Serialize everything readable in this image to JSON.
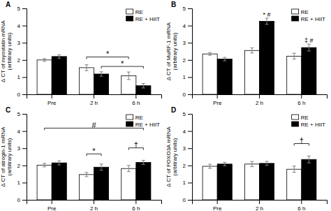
{
  "chart_data": [
    {
      "type": "bar",
      "title": "A",
      "y_label": "Δ CT of myostatin mRNA\n(arbitrary units)",
      "categories": [
        "Pre",
        "2 h",
        "6 h"
      ],
      "series": [
        {
          "name": "RE",
          "color": "white",
          "values": [
            2.0,
            1.55,
            1.08
          ],
          "errors": [
            0.08,
            0.17,
            0.22
          ]
        },
        {
          "name": "RE + HIIT",
          "color": "black",
          "values": [
            2.2,
            1.18,
            0.5
          ],
          "errors": [
            0.1,
            0.13,
            0.13
          ]
        }
      ],
      "ylim": [
        0,
        5
      ],
      "yticks": [
        0,
        1,
        2,
        3,
        4,
        5
      ],
      "legend": "upper right",
      "annotations": [
        {
          "text": "*",
          "y": 2.05,
          "from": {
            "category": "2 h",
            "series": "RE"
          },
          "to": {
            "category": "6 h",
            "series": "RE"
          }
        },
        {
          "text": "*",
          "y": 1.5,
          "from": {
            "category": "2 h",
            "series": "RE + HIIT"
          },
          "to": {
            "category": "6 h",
            "series": "RE + HIIT"
          }
        }
      ]
    },
    {
      "type": "bar",
      "title": "B",
      "y_label": "Δ CT of MuRF-1 mRNA\n(arbitrary units)",
      "categories": [
        "Pre",
        "2 h",
        "6 h"
      ],
      "series": [
        {
          "name": "RE",
          "color": "white",
          "values": [
            2.35,
            2.55,
            2.22
          ],
          "errors": [
            0.08,
            0.15,
            0.17
          ]
        },
        {
          "name": "RE + HIIT",
          "color": "black",
          "values": [
            2.05,
            4.25,
            2.72
          ],
          "errors": [
            0.1,
            0.18,
            0.2
          ]
        }
      ],
      "ylim": [
        0,
        5
      ],
      "yticks": [
        0,
        1,
        2,
        3,
        4,
        5
      ],
      "legend": "upper right",
      "annotations": [
        {
          "text": "* #",
          "category": "2 h",
          "series": "RE + HIIT"
        },
        {
          "text": "‡ #",
          "category": "6 h",
          "series": "RE + HIIT"
        }
      ]
    },
    {
      "type": "bar",
      "title": "C",
      "y_label": "Δ CT of atrogin-1 mRNA\n(arbitrary units)",
      "categories": [
        "Pre",
        "2 h",
        "6 h"
      ],
      "series": [
        {
          "name": "RE",
          "color": "white",
          "values": [
            2.02,
            1.47,
            1.82
          ],
          "errors": [
            0.1,
            0.12,
            0.18
          ]
        },
        {
          "name": "RE + HIIT",
          "color": "black",
          "values": [
            2.15,
            1.9,
            2.18
          ],
          "errors": [
            0.12,
            0.18,
            0.12
          ]
        }
      ],
      "ylim": [
        0,
        5
      ],
      "yticks": [
        0,
        1,
        2,
        3,
        4,
        5
      ],
      "legend": "upper right",
      "annotations": [
        {
          "text": "#",
          "y": 4.05,
          "from": {
            "category": "Pre",
            "series": "RE"
          },
          "to": {
            "category": "6 h",
            "series": "RE + HIIT"
          }
        },
        {
          "text": "*",
          "y": 2.55,
          "from": {
            "category": "2 h",
            "series": "RE"
          },
          "to": {
            "category": "2 h",
            "series": "RE + HIIT"
          }
        },
        {
          "text": "†",
          "y": 2.9,
          "from": {
            "category": "6 h",
            "series": "RE"
          },
          "to": {
            "category": "6 h",
            "series": "RE + HIIT"
          }
        }
      ]
    },
    {
      "type": "bar",
      "title": "D",
      "y_label": "Δ CT of FOXO3A mRNA\n(arbitrary units)",
      "categories": [
        "Pre",
        "2 h",
        "6 h"
      ],
      "series": [
        {
          "name": "RE",
          "color": "white",
          "values": [
            1.95,
            2.08,
            1.78
          ],
          "errors": [
            0.12,
            0.15,
            0.18
          ]
        },
        {
          "name": "RE + HIIT",
          "color": "black",
          "values": [
            2.08,
            2.12,
            2.35
          ],
          "errors": [
            0.1,
            0.12,
            0.2
          ]
        }
      ],
      "ylim": [
        0,
        5
      ],
      "yticks": [
        0,
        1,
        2,
        3,
        4,
        5
      ],
      "legend": "upper right",
      "annotations": [
        {
          "text": "†",
          "y": 3.15,
          "from": {
            "category": "6 h",
            "series": "RE"
          },
          "to": {
            "category": "6 h",
            "series": "RE + HIIT"
          }
        }
      ]
    }
  ]
}
